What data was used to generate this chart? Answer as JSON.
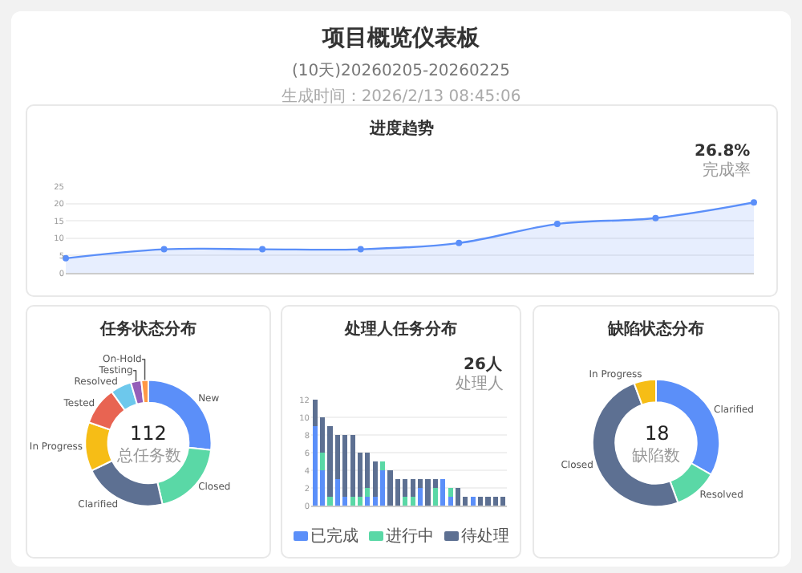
{
  "chart_data": [
    {
      "type": "other",
      "title": "项目概览仪表板",
      "subtitle": "(10天)20260205-20260225",
      "annotations": [
        "生成时间：2026/2/13 08:45:06"
      ]
    },
    {
      "type": "area",
      "title": "进度趋势",
      "categories": [
        null,
        null,
        null,
        null,
        null,
        null,
        null,
        null
      ],
      "values": [
        4.2,
        6.8,
        6.8,
        6.8,
        8.6,
        14.1,
        15.8,
        20.3
      ],
      "color": "#5b8ff9",
      "ylim": [
        0,
        25
      ],
      "yticks": [
        0,
        5,
        10,
        15,
        20,
        25
      ],
      "grid": "y",
      "marker": "circle",
      "tick_labels": "y",
      "legend": false,
      "annotations": [
        "26.8%",
        "完成率"
      ]
    },
    {
      "type": "donut",
      "title": "任务状态分布",
      "categories": [
        "New",
        "Closed",
        "Clarified",
        "In Progress",
        "Tested",
        "Resolved",
        "Testing",
        "On-Hold"
      ],
      "values": [
        26.8,
        19.6,
        21.4,
        12.5,
        9.8,
        5.4,
        2.7,
        1.8
      ],
      "colors": [
        "#5b8ff9",
        "#5ad8a6",
        "#5d7092",
        "#f6bd16",
        "#e86452",
        "#6dc8ec",
        "#945fb9",
        "#ff9845"
      ],
      "legend": false,
      "annotations": [
        "112",
        "总任务数"
      ]
    },
    {
      "type": "bar",
      "title": "处理人任务分布",
      "stacked": true,
      "categories": [
        null,
        null,
        null,
        null,
        null,
        null,
        null,
        null,
        null,
        null,
        null,
        null,
        null,
        null,
        null,
        null,
        null,
        null,
        null,
        null,
        null,
        null,
        null,
        null,
        null,
        null
      ],
      "series": [
        {
          "name": "已完成",
          "color": "#5b8ff9",
          "values": [
            9,
            4,
            0,
            3,
            1,
            0,
            0,
            1,
            1,
            4,
            0,
            0,
            0,
            0,
            2,
            0,
            0,
            3,
            1,
            0,
            0,
            1,
            0,
            0,
            0,
            0
          ]
        },
        {
          "name": "进行中",
          "color": "#5ad8a6",
          "values": [
            0,
            2,
            1,
            0,
            0,
            1,
            1,
            1,
            0,
            1,
            0,
            0,
            1,
            1,
            0,
            0,
            2,
            0,
            1,
            0,
            0,
            0,
            0,
            0,
            0,
            0
          ]
        },
        {
          "name": "待处理",
          "color": "#5d7092",
          "values": [
            3,
            4,
            8,
            5,
            7,
            7,
            5,
            4,
            4,
            0,
            4,
            3,
            2,
            2,
            1,
            3,
            1,
            0,
            0,
            2,
            1,
            0,
            1,
            1,
            1,
            1
          ]
        }
      ],
      "ylim": [
        0,
        12
      ],
      "yticks": [
        0,
        2,
        4,
        6,
        8,
        10,
        12
      ],
      "grid": "y",
      "tick_labels": "y",
      "legend": "bottom",
      "annotations": [
        "26人",
        "处理人"
      ]
    },
    {
      "type": "donut",
      "title": "缺陷状态分布",
      "categories": [
        "Clarified",
        "Resolved",
        "Closed",
        "In Progress"
      ],
      "values": [
        33.3,
        11.1,
        50,
        5.6
      ],
      "colors": [
        "#5b8ff9",
        "#5ad8a6",
        "#5d7092",
        "#f6bd16"
      ],
      "legend": false,
      "annotations": [
        "18",
        "缺陷数"
      ]
    }
  ]
}
